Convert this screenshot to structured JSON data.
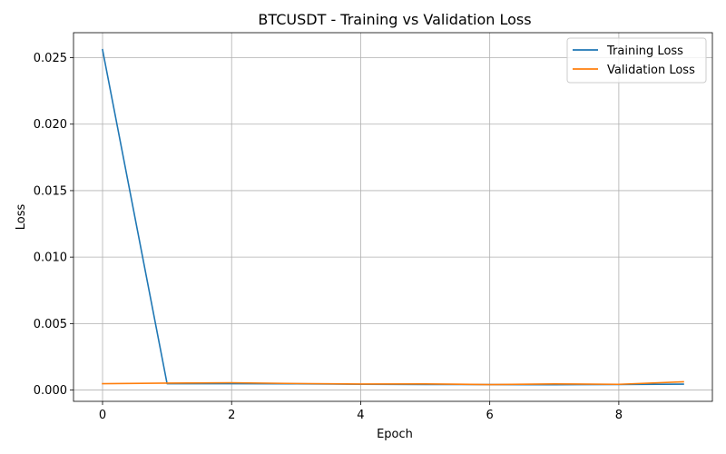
{
  "chart_data": {
    "type": "line",
    "title": "BTCUSDT - Training vs Validation Loss",
    "xlabel": "Epoch",
    "ylabel": "Loss",
    "x": [
      0,
      1,
      2,
      3,
      4,
      5,
      6,
      7,
      8,
      9
    ],
    "xlim": [
      -0.45,
      9.45
    ],
    "ylim": [
      -0.00085,
      0.02688
    ],
    "xticks": [
      0,
      2,
      4,
      6,
      8
    ],
    "yticks": [
      0.0,
      0.005,
      0.01,
      0.015,
      0.02,
      0.025
    ],
    "ytick_labels": [
      "0.000",
      "0.005",
      "0.010",
      "0.015",
      "0.020",
      "0.025"
    ],
    "grid": true,
    "legend_position": "top-right",
    "series": [
      {
        "name": "Training Loss",
        "color": "#1f77b4",
        "values": [
          0.0256,
          0.00048,
          0.00048,
          0.00047,
          0.00043,
          0.00042,
          0.00041,
          0.0004,
          0.00042,
          0.00044
        ]
      },
      {
        "name": "Validation Loss",
        "color": "#ff7f0e",
        "values": [
          0.00048,
          0.00052,
          0.00055,
          0.00049,
          0.00045,
          0.00046,
          0.00041,
          0.00046,
          0.00043,
          0.00062
        ]
      }
    ]
  }
}
